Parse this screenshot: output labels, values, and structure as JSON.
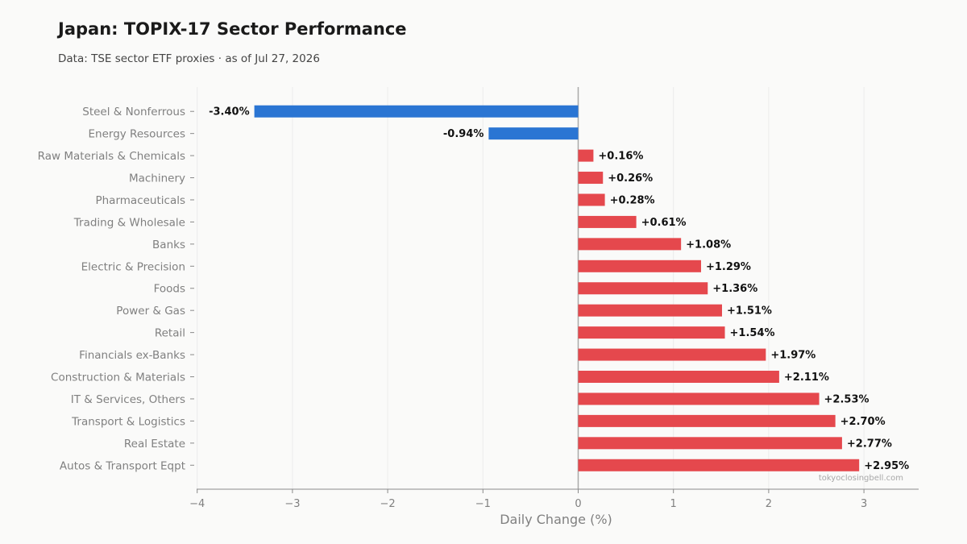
{
  "title": "Japan: TOPIX-17 Sector Performance",
  "subtitle": "Data: TSE sector ETF proxies · as of Jul 27, 2026",
  "watermark": "tokyoclosingbell.com",
  "colors": {
    "negative": "#2a75d3",
    "positive": "#e5484d",
    "grid": "#ececec",
    "zero_line": "#a9a9a9",
    "axis": "#8a8a8a"
  },
  "chart_data": {
    "type": "bar",
    "orientation": "horizontal",
    "title": "Japan: TOPIX-17 Sector Performance",
    "subtitle": "Data: TSE sector ETF proxies · as of Jul 27, 2026",
    "xlabel": "Daily Change (%)",
    "ylabel": "",
    "xlim": [
      -4,
      3.6
    ],
    "xticks": [
      -4,
      -3,
      -2,
      -1,
      0,
      1,
      2,
      3
    ],
    "xtick_labels": [
      "−4",
      "−3",
      "−2",
      "−1",
      "0",
      "1",
      "2",
      "3"
    ],
    "grid": "vertical",
    "categories": [
      "Steel & Nonferrous",
      "Energy Resources",
      "Raw Materials & Chemicals",
      "Machinery",
      "Pharmaceuticals",
      "Trading & Wholesale",
      "Banks",
      "Electric & Precision",
      "Foods",
      "Power & Gas",
      "Retail",
      "Financials ex-Banks",
      "Construction & Materials",
      "IT & Services, Others",
      "Transport & Logistics",
      "Real Estate",
      "Autos & Transport Eqpt"
    ],
    "values": [
      -3.4,
      -0.94,
      0.16,
      0.26,
      0.28,
      0.61,
      1.08,
      1.29,
      1.36,
      1.51,
      1.54,
      1.97,
      2.11,
      2.53,
      2.7,
      2.77,
      2.95
    ],
    "value_labels": [
      "-3.40%",
      "-0.94%",
      "+0.16%",
      "+0.26%",
      "+0.28%",
      "+0.61%",
      "+1.08%",
      "+1.29%",
      "+1.36%",
      "+1.51%",
      "+1.54%",
      "+1.97%",
      "+2.11%",
      "+2.53%",
      "+2.70%",
      "+2.77%",
      "+2.95%"
    ]
  }
}
